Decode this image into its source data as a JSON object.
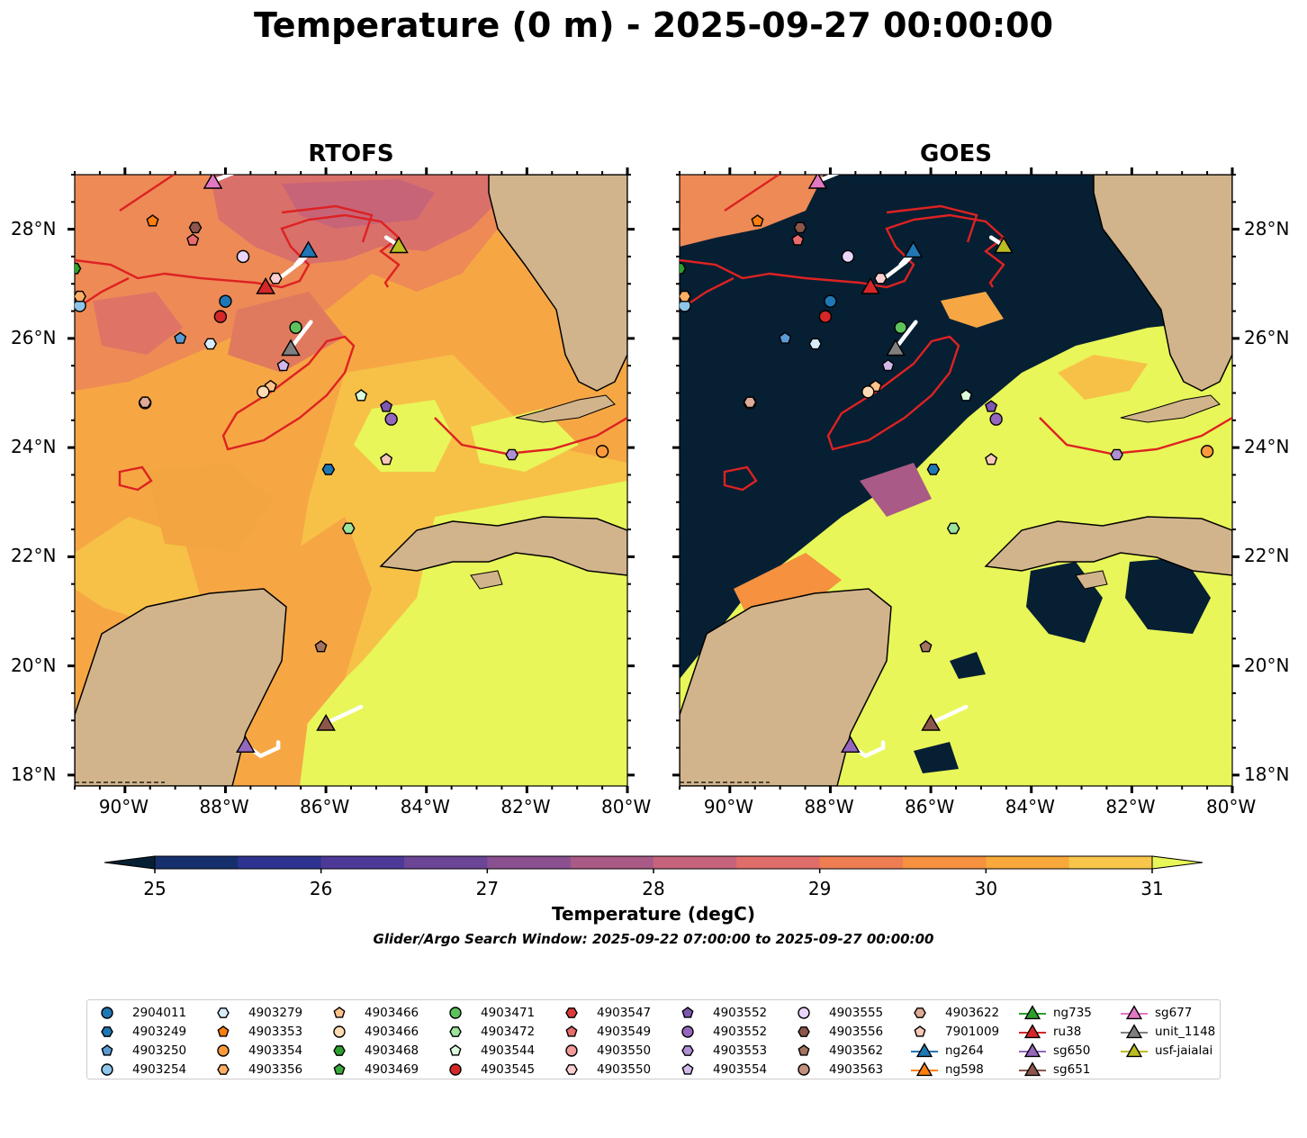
{
  "title": "Temperature (0 m) - 2025-09-27 00:00:00",
  "panels": [
    {
      "title": "RTOFS"
    },
    {
      "title": "GOES"
    }
  ],
  "axes": {
    "lon_labels": [
      "90°W",
      "88°W",
      "86°W",
      "84°W",
      "82°W",
      "80°W"
    ],
    "lat_labels": [
      "28°N",
      "26°N",
      "24°N",
      "22°N",
      "20°N",
      "18°N"
    ],
    "lon_range": [
      -91,
      -80
    ],
    "lat_range": [
      17.8,
      29
    ]
  },
  "colorbar": {
    "label": "Temperature (degC)",
    "tick_labels": [
      "25",
      "26",
      "27",
      "28",
      "29",
      "30",
      "31"
    ],
    "range": [
      25,
      31
    ],
    "step": 0.5,
    "colors": [
      "#061f33",
      "#16306e",
      "#2e3391",
      "#4d3a98",
      "#6b4596",
      "#8a5090",
      "#a95a86",
      "#c7637b",
      "#df6d6a",
      "#ee7d52",
      "#f5913f",
      "#f9a93b",
      "#f7c64a",
      "#e8f659"
    ],
    "extend": "both"
  },
  "search_window": "Glider/Argo Search Window: 2025-09-22 07:00:00 to 2025-09-27 00:00:00",
  "colors": {
    "land": "#d2b48c",
    "shallow": "#9bbedc",
    "warm_core": "#dd2222",
    "track": "#ffffff",
    "goes_cloud": "#061f33",
    "rtofs_base": "#f6a744"
  },
  "legend": {
    "columns": [
      [
        {
          "label": "2904011",
          "marker": "circle",
          "color": "#1f77b4"
        },
        {
          "label": "4903249",
          "marker": "hexagon",
          "color": "#1f77b4"
        },
        {
          "label": "4903250",
          "marker": "pentagon",
          "color": "#5b9bd5"
        },
        {
          "label": "4903254",
          "marker": "circle",
          "color": "#8ec6ea"
        }
      ],
      [
        {
          "label": "4903279",
          "marker": "hexagon",
          "color": "#d6ecfb"
        },
        {
          "label": "4903353",
          "marker": "pentagon",
          "color": "#ff7f0e"
        },
        {
          "label": "4903354",
          "marker": "circle",
          "color": "#ff9a3c"
        },
        {
          "label": "4903356",
          "marker": "hexagon",
          "color": "#ffae66"
        }
      ],
      [
        {
          "label": "4903466",
          "marker": "pentagon",
          "color": "#ffc38a"
        },
        {
          "label": "4903466",
          "marker": "circle",
          "color": "#ffdbb5"
        },
        {
          "label": "4903468",
          "marker": "hexagon",
          "color": "#2ca02c"
        },
        {
          "label": "4903469",
          "marker": "pentagon",
          "color": "#3aa83a"
        }
      ],
      [
        {
          "label": "4903471",
          "marker": "circle",
          "color": "#5cc25c"
        },
        {
          "label": "4903472",
          "marker": "hexagon",
          "color": "#9be39b"
        },
        {
          "label": "4903544",
          "marker": "pentagon",
          "color": "#ddfbdd"
        },
        {
          "label": "4903545",
          "marker": "circle",
          "color": "#d62728"
        }
      ],
      [
        {
          "label": "4903547",
          "marker": "hexagon",
          "color": "#dc3b3b"
        },
        {
          "label": "4903549",
          "marker": "pentagon",
          "color": "#ea6b6b"
        },
        {
          "label": "4903550",
          "marker": "circle",
          "color": "#f59a9a"
        },
        {
          "label": "4903550",
          "marker": "hexagon",
          "color": "#fcd0d0"
        }
      ],
      [
        {
          "label": "4903552",
          "marker": "pentagon",
          "color": "#7e57b0"
        },
        {
          "label": "4903552",
          "marker": "circle",
          "color": "#9467bd"
        },
        {
          "label": "4903553",
          "marker": "hexagon",
          "color": "#b08fd4"
        },
        {
          "label": "4903554",
          "marker": "pentagon",
          "color": "#d2b9ec"
        }
      ],
      [
        {
          "label": "4903555",
          "marker": "circle",
          "color": "#e9d5fb"
        },
        {
          "label": "4903556",
          "marker": "hexagon",
          "color": "#8c564b"
        },
        {
          "label": "4903562",
          "marker": "pentagon",
          "color": "#a4735f"
        },
        {
          "label": "4903563",
          "marker": "circle",
          "color": "#c48f7c"
        }
      ],
      [
        {
          "label": "4903622",
          "marker": "hexagon",
          "color": "#ddab98"
        },
        {
          "label": "7901009",
          "marker": "pentagon",
          "color": "#f7c9b8"
        },
        {
          "label": "ng264",
          "marker": "triangle-line",
          "color": "#1f77b4"
        },
        {
          "label": "ng598",
          "marker": "triangle-line",
          "color": "#ff7f0e"
        }
      ],
      [
        {
          "label": "ng735",
          "marker": "triangle-line",
          "color": "#2ca02c"
        },
        {
          "label": "ru38",
          "marker": "triangle-line",
          "color": "#d62728"
        },
        {
          "label": "sg650",
          "marker": "triangle-line",
          "color": "#9467bd"
        },
        {
          "label": "sg651",
          "marker": "triangle-line",
          "color": "#8c564b"
        }
      ],
      [
        {
          "label": "sg677",
          "marker": "triangle-line",
          "color": "#e377c2"
        },
        {
          "label": "unit_1148",
          "marker": "triangle-line",
          "color": "#7f7f7f"
        },
        {
          "label": "usf-jaialai",
          "marker": "triangle-line",
          "color": "#bcbd22"
        }
      ]
    ]
  },
  "floats": [
    {
      "id": "4903249",
      "marker": "hexagon",
      "color": "#1f77b4",
      "lon": -85.95,
      "lat": 23.6
    },
    {
      "id": "4903250",
      "marker": "pentagon",
      "color": "#5b9bd5",
      "lon": -88.9,
      "lat": 26.0
    },
    {
      "id": "4903254",
      "marker": "circle",
      "color": "#8ec6ea",
      "lon": -90.9,
      "lat": 26.6
    },
    {
      "id": "4903279",
      "marker": "hexagon",
      "color": "#d6ecfb",
      "lon": -88.3,
      "lat": 25.9
    },
    {
      "id": "4903353",
      "marker": "pentagon",
      "color": "#ff7f0e",
      "lon": -89.45,
      "lat": 28.15
    },
    {
      "id": "4903354",
      "marker": "circle",
      "color": "#ff9a3c",
      "lon": -80.5,
      "lat": 23.93
    },
    {
      "id": "4903356",
      "marker": "hexagon",
      "color": "#ffae66",
      "lon": -90.9,
      "lat": 26.77
    },
    {
      "id": "4903466",
      "marker": "pentagon",
      "color": "#ffc38a",
      "lon": -87.1,
      "lat": 25.12
    },
    {
      "id": "4903466",
      "marker": "circle",
      "color": "#ffdbb5",
      "lon": -87.25,
      "lat": 25.02
    },
    {
      "id": "4903468",
      "marker": "hexagon",
      "color": "#2ca02c",
      "lon": -91.0,
      "lat": 27.28
    },
    {
      "id": "4903471",
      "marker": "circle",
      "color": "#5cc25c",
      "lon": -86.6,
      "lat": 26.2
    },
    {
      "id": "4903472",
      "marker": "hexagon",
      "color": "#9be39b",
      "lon": -85.55,
      "lat": 22.52
    },
    {
      "id": "4903544",
      "marker": "pentagon",
      "color": "#ddfbdd",
      "lon": -85.3,
      "lat": 24.95
    },
    {
      "id": "4903545",
      "marker": "circle",
      "color": "#d62728",
      "lon": -88.1,
      "lat": 26.4
    },
    {
      "id": "4903549",
      "marker": "pentagon",
      "color": "#ea6b6b",
      "lon": -88.65,
      "lat": 27.8
    },
    {
      "id": "4903550",
      "marker": "circle",
      "color": "#f59a9a",
      "lon": -87.65,
      "lat": 27.5
    },
    {
      "id": "4903550",
      "marker": "hexagon",
      "color": "#fcd0d0",
      "lon": -87.0,
      "lat": 27.1
    },
    {
      "id": "4903552",
      "marker": "pentagon",
      "color": "#7e57b0",
      "lon": -84.8,
      "lat": 24.75
    },
    {
      "id": "4903552",
      "marker": "circle",
      "color": "#9467bd",
      "lon": -84.7,
      "lat": 24.52
    },
    {
      "id": "4903553",
      "marker": "hexagon",
      "color": "#b08fd4",
      "lon": -82.3,
      "lat": 23.87
    },
    {
      "id": "4903554",
      "marker": "pentagon",
      "color": "#d2b9ec",
      "lon": -86.85,
      "lat": 25.5
    },
    {
      "id": "4903555",
      "marker": "circle",
      "color": "#e9d5fb",
      "lon": -87.65,
      "lat": 27.5
    },
    {
      "id": "4903556",
      "marker": "hexagon",
      "color": "#8c564b",
      "lon": -88.6,
      "lat": 28.03
    },
    {
      "id": "4903562",
      "marker": "pentagon",
      "color": "#a4735f",
      "lon": -86.1,
      "lat": 20.35
    },
    {
      "id": "4903563",
      "marker": "circle",
      "color": "#c48f7c",
      "lon": -89.6,
      "lat": 24.82
    },
    {
      "id": "4903622",
      "marker": "hexagon",
      "color": "#ddab98",
      "lon": -89.6,
      "lat": 24.83
    },
    {
      "id": "7901009",
      "marker": "pentagon",
      "color": "#f7c9b8",
      "lon": -84.8,
      "lat": 23.78
    },
    {
      "id": "2904011",
      "marker": "circle",
      "color": "#1f77b4",
      "lon": -88.0,
      "lat": 26.68
    }
  ],
  "gliders": [
    {
      "id": "sg677",
      "color": "#e377c2",
      "lon": -88.25,
      "lat": 28.88,
      "track": [
        [
          -88.25,
          28.88
        ],
        [
          -87.8,
          29.05
        ]
      ]
    },
    {
      "id": "ru38",
      "color": "#d62728",
      "lon": -87.2,
      "lat": 26.95,
      "track": [
        [
          -87.0,
          27.05
        ],
        [
          -86.5,
          27.4
        ],
        [
          -86.3,
          27.6
        ]
      ]
    },
    {
      "id": "ng264",
      "color": "#1f77b4",
      "lon": -86.35,
      "lat": 27.62,
      "track": [
        [
          -86.35,
          27.62
        ],
        [
          -86.6,
          27.35
        ]
      ]
    },
    {
      "id": "usf-jaialai",
      "color": "#bcbd22",
      "lon": -84.55,
      "lat": 27.7,
      "track": [
        [
          -84.55,
          27.7
        ],
        [
          -84.8,
          27.85
        ]
      ]
    },
    {
      "id": "unit_1148",
      "color": "#7f7f7f",
      "lon": -86.7,
      "lat": 25.82,
      "track": [
        [
          -86.7,
          25.82
        ],
        [
          -86.3,
          26.3
        ]
      ]
    },
    {
      "id": "sg651",
      "color": "#8c564b",
      "lon": -86.0,
      "lat": 18.95,
      "track": [
        [
          -86.0,
          18.95
        ],
        [
          -85.3,
          19.25
        ]
      ]
    },
    {
      "id": "sg650",
      "color": "#9467bd",
      "lon": -87.6,
      "lat": 18.55,
      "track": [
        [
          -87.6,
          18.55
        ],
        [
          -87.3,
          18.35
        ],
        [
          -86.95,
          18.5
        ],
        [
          -86.95,
          18.6
        ]
      ]
    }
  ]
}
